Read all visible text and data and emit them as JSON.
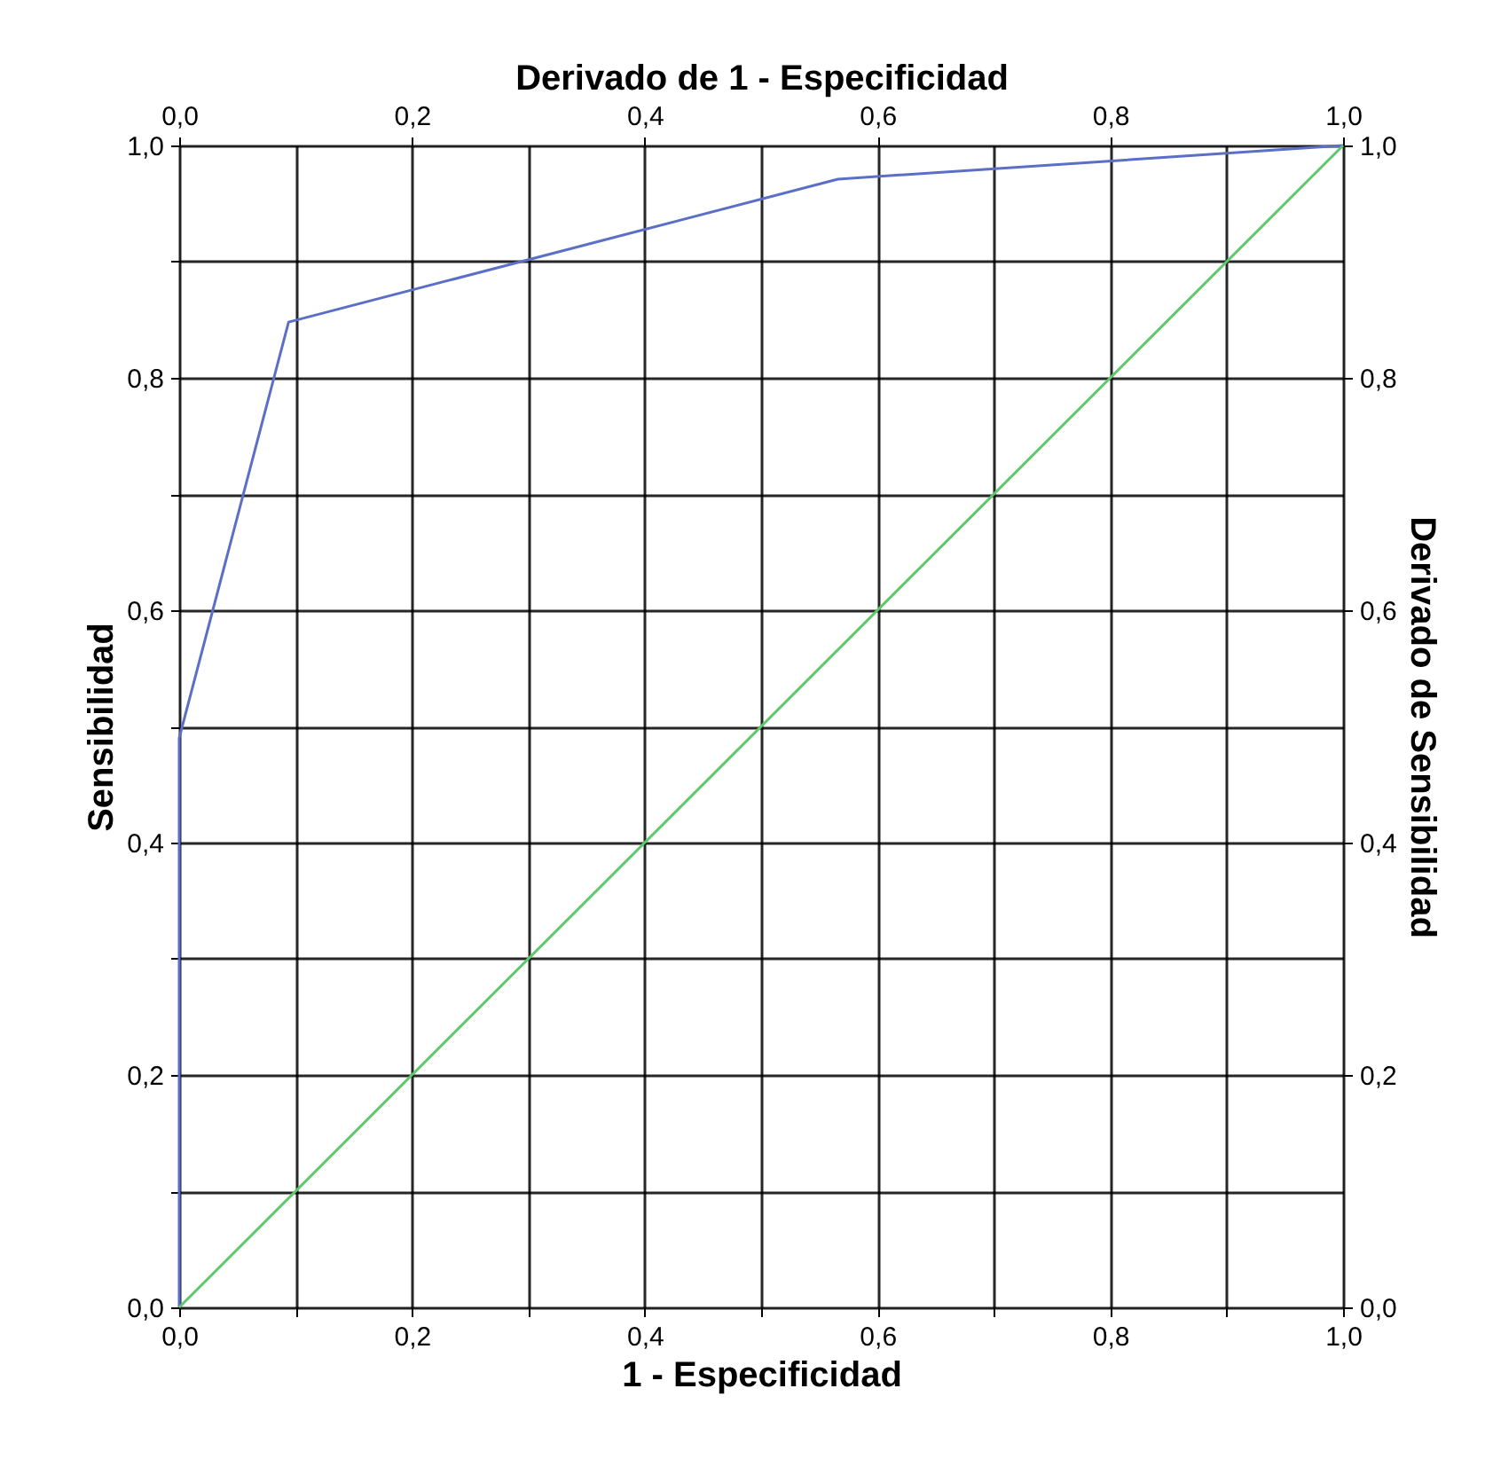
{
  "chart_data": {
    "type": "line",
    "xlabel": "1 - Especificidad",
    "ylabel": "Sensibilidad",
    "x2label": "Derivado de 1 - Especificidad",
    "y2label": "Derivado de Sensibilidad",
    "series": [
      {
        "color": "#5b6fc6",
        "x": [
          0,
          0,
          0.094,
          0.566,
          1
        ],
        "values": [
          0,
          0.49,
          0.848,
          0.971,
          1
        ]
      },
      {
        "color": "#5fc86c",
        "x": [
          0,
          1
        ],
        "values": [
          0,
          1
        ]
      }
    ],
    "xlim": [
      0,
      1
    ],
    "ylim": [
      0,
      1
    ],
    "x2lim": [
      0,
      1
    ],
    "y2lim": [
      0,
      1
    ],
    "xticks": [
      {
        "value": 0,
        "label": "0,0"
      },
      {
        "value": 0.1,
        "label": null
      },
      {
        "value": 0.2,
        "label": "0,2"
      },
      {
        "value": 0.3,
        "label": null
      },
      {
        "value": 0.4,
        "label": "0,4"
      },
      {
        "value": 0.5,
        "label": null
      },
      {
        "value": 0.6,
        "label": "0,6"
      },
      {
        "value": 0.7,
        "label": null
      },
      {
        "value": 0.8,
        "label": "0,8"
      },
      {
        "value": 0.9,
        "label": null
      },
      {
        "value": 1,
        "label": "1,0"
      }
    ],
    "yticks": [
      {
        "value": 0,
        "label": "0,0"
      },
      {
        "value": 0.1,
        "label": null
      },
      {
        "value": 0.2,
        "label": "0,2"
      },
      {
        "value": 0.3,
        "label": null
      },
      {
        "value": 0.4,
        "label": "0,4"
      },
      {
        "value": 0.5,
        "label": null
      },
      {
        "value": 0.6,
        "label": "0,6"
      },
      {
        "value": 0.7,
        "label": null
      },
      {
        "value": 0.8,
        "label": "0,8"
      },
      {
        "value": 0.9,
        "label": null
      },
      {
        "value": 1,
        "label": "1,0"
      }
    ],
    "x2ticks": [
      {
        "value": 0,
        "label": "0,0"
      },
      {
        "value": 0.2,
        "label": "0,2"
      },
      {
        "value": 0.4,
        "label": "0,4"
      },
      {
        "value": 0.6,
        "label": "0,6"
      },
      {
        "value": 0.8,
        "label": "0,8"
      },
      {
        "value": 1,
        "label": "1,0"
      }
    ],
    "y2ticks": [
      {
        "value": 0,
        "label": "0,0"
      },
      {
        "value": 0.2,
        "label": "0,2"
      },
      {
        "value": 0.4,
        "label": "0,4"
      },
      {
        "value": 0.6,
        "label": "0,6"
      },
      {
        "value": 0.8,
        "label": "0,8"
      },
      {
        "value": 1,
        "label": "1,0"
      }
    ],
    "grid": true,
    "legend": false,
    "marker": "none",
    "line_style": "solid"
  }
}
